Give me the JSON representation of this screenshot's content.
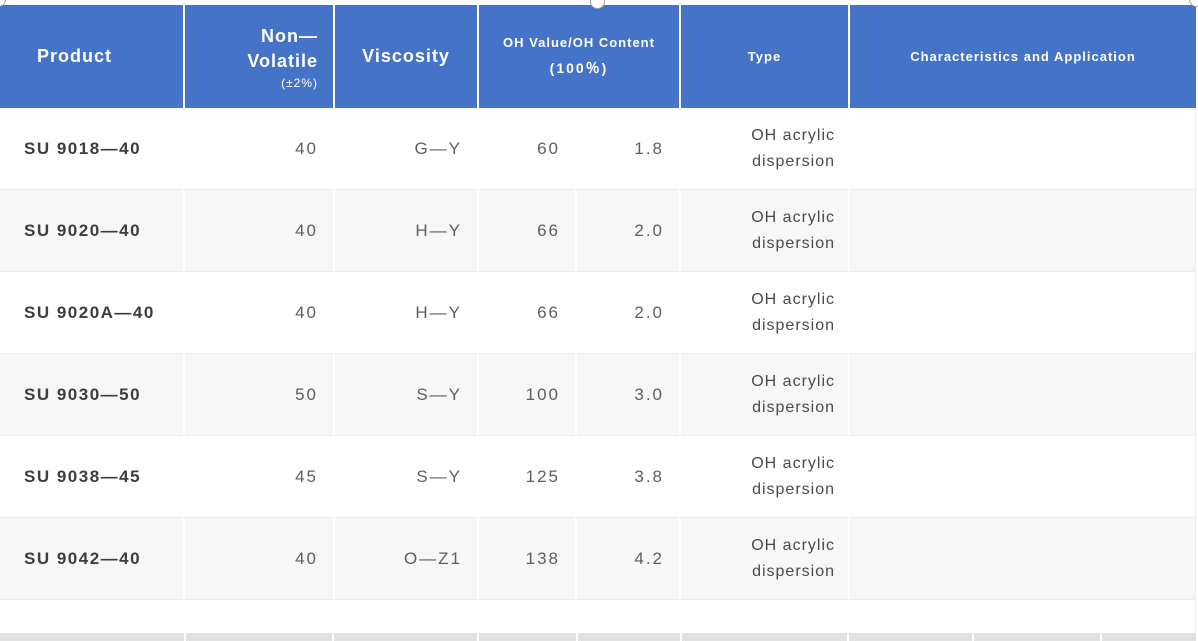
{
  "colors": {
    "header_bg": "#4473c8",
    "header_text": "#ffffff",
    "row_alt_bg": "#f7f7f8",
    "row_border": "#ebebeb",
    "product_text": "#3d3d3d",
    "value_text": "#5e5e5e",
    "type_text": "#4a4a4a",
    "next_row_bg": "#e1e1e1",
    "handle_border": "#a3a3a3"
  },
  "table": {
    "header": {
      "product": "Product",
      "non_volatile_line1": "Non—",
      "non_volatile_line2": "Volatile",
      "non_volatile_note": "(±2%)",
      "viscosity": "Viscosity",
      "oh_title": "OH Value/OH Content",
      "oh_subtitle": "(100％)",
      "type": "Type",
      "characteristics": "Characteristics and Application"
    },
    "rows": [
      {
        "product": "SU 9018—40",
        "non_volatile": "40",
        "viscosity": "G—Y",
        "oh_value": "60",
        "oh_content": "1.8",
        "type_line1": "OH acrylic",
        "type_line2": "dispersion",
        "characteristics": ""
      },
      {
        "product": "SU 9020—40",
        "non_volatile": "40",
        "viscosity": "H—Y",
        "oh_value": "66",
        "oh_content": "2.0",
        "type_line1": "OH acrylic",
        "type_line2": "dispersion",
        "characteristics": ""
      },
      {
        "product": "SU 9020A—40",
        "non_volatile": "40",
        "viscosity": "H—Y",
        "oh_value": "66",
        "oh_content": "2.0",
        "type_line1": "OH acrylic",
        "type_line2": "dispersion",
        "characteristics": ""
      },
      {
        "product": "SU 9030—50",
        "non_volatile": "50",
        "viscosity": "S—Y",
        "oh_value": "100",
        "oh_content": "3.0",
        "type_line1": "OH acrylic",
        "type_line2": "dispersion",
        "characteristics": ""
      },
      {
        "product": "SU 9038—45",
        "non_volatile": "45",
        "viscosity": "S—Y",
        "oh_value": "125",
        "oh_content": "3.8",
        "type_line1": "OH acrylic",
        "type_line2": "dispersion",
        "characteristics": ""
      },
      {
        "product": "SU 9042—40",
        "non_volatile": "40",
        "viscosity": "O—Z1",
        "oh_value": "138",
        "oh_content": "4.2",
        "type_line1": "OH acrylic",
        "type_line2": "dispersion",
        "characteristics": ""
      }
    ]
  }
}
